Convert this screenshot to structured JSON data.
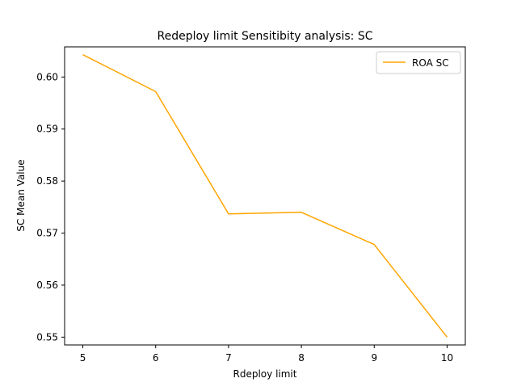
{
  "chart_data": {
    "type": "line",
    "title": "Redeploy limit Sensitibity analysis: SC",
    "xlabel": "Rdeploy limit",
    "ylabel": "SC Mean Value",
    "x": [
      5,
      6,
      7,
      8,
      9,
      10
    ],
    "xticks": [
      "5",
      "6",
      "7",
      "8",
      "9",
      "10"
    ],
    "yticks": [
      "0.55",
      "0.56",
      "0.57",
      "0.58",
      "0.59",
      "0.60"
    ],
    "xlim": [
      4.75,
      10.25
    ],
    "ylim": [
      0.5485,
      0.6058
    ],
    "series": [
      {
        "name": "ROA SC",
        "color": "#ffa500",
        "values": [
          0.6043,
          0.5972,
          0.5737,
          0.574,
          0.5678,
          0.55
        ]
      }
    ],
    "legend": "top-right",
    "grid": false
  }
}
